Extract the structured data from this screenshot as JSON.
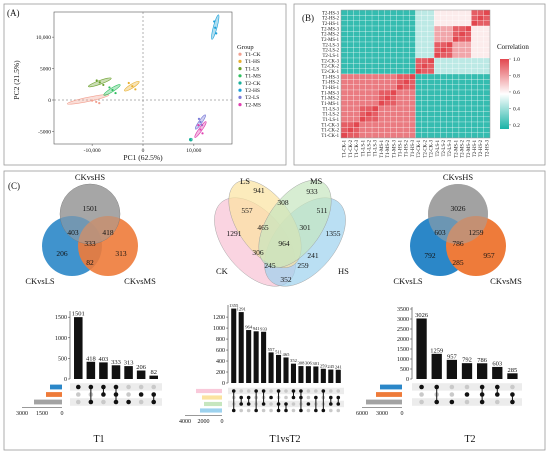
{
  "panel_labels": [
    "(A)",
    "(B)",
    "(C)"
  ],
  "colors": {
    "T1-CK": "#f2a090",
    "T1-HS": "#e8b030",
    "T1-LS": "#6aa02c",
    "T1-MS": "#2fbf5f",
    "T2-CK": "#1ab09a",
    "T2-HS": "#1aa0d8",
    "T2-LS": "#7a7ad8",
    "T2-MS": "#e040b0",
    "CKvsHS": "#a3a3a3",
    "CKvsLS": "#2b87c8",
    "CKvsMS": "#ee7b3a",
    "venn_LS": "#fbe3a0",
    "venn_MS": "#c6e6bf",
    "venn_HS": "#9dd2ee",
    "venn_CK": "#f9c9da"
  },
  "chart_data": [
    {
      "id": "A",
      "type": "scatter",
      "xlabel": "PC1 (62.5%)",
      "ylabel": "PC2 (21.5%)",
      "xticks": [
        "-10,000",
        "0",
        "10,000"
      ],
      "yticks": [
        "10,000",
        "5000",
        "0",
        "-5000"
      ],
      "xlim": [
        -17500,
        17500
      ],
      "ylim": [
        -7000,
        14000
      ],
      "legend_title": "Group",
      "legend_position": "right",
      "series": [
        {
          "name": "T1-CK",
          "points": [
            [
              -10000,
              -100
            ],
            [
              -9200,
              -300
            ],
            [
              -8600,
              -500
            ]
          ],
          "ellipse": {
            "cx": -10800,
            "cy": 100,
            "rx": 4200,
            "ry": 330,
            "angle": 12
          }
        },
        {
          "name": "T1-HS",
          "points": [
            [
              -2800,
              2700
            ],
            [
              -2100,
              2200
            ],
            [
              -1500,
              1700
            ]
          ],
          "ellipse": {
            "cx": -2200,
            "cy": 2200,
            "rx": 1700,
            "ry": 320,
            "angle": 32
          }
        },
        {
          "name": "T1-LS",
          "points": [
            [
              -9100,
              3100
            ],
            [
              -8500,
              2800
            ],
            [
              -7800,
              2400
            ]
          ],
          "ellipse": {
            "cx": -8500,
            "cy": 2800,
            "rx": 2400,
            "ry": 300,
            "angle": 20
          }
        },
        {
          "name": "T1-MS",
          "points": [
            [
              -6600,
              2000
            ],
            [
              -6000,
              1600
            ],
            [
              -5400,
              1100
            ]
          ],
          "ellipse": {
            "cx": -6100,
            "cy": 1600,
            "rx": 1900,
            "ry": 300,
            "angle": 32
          }
        },
        {
          "name": "T2-CK",
          "points": [
            [
              9300,
              -6300
            ],
            [
              9400,
              -6400
            ]
          ],
          "ellipse": {
            "cx": 9400,
            "cy": -6300,
            "rx": 300,
            "ry": 220,
            "angle": 0
          }
        },
        {
          "name": "T2-HS",
          "points": [
            [
              14000,
              12500
            ],
            [
              14200,
              11500
            ],
            [
              14400,
              10600
            ]
          ],
          "ellipse": {
            "cx": 14200,
            "cy": 11600,
            "rx": 2500,
            "ry": 300,
            "angle": 75
          }
        },
        {
          "name": "T2-LS",
          "points": [
            [
              11000,
              -3000
            ],
            [
              11300,
              -3500
            ],
            [
              11600,
              -4000
            ]
          ],
          "ellipse": {
            "cx": 11300,
            "cy": -3500,
            "rx": 1700,
            "ry": 260,
            "angle": 55
          }
        },
        {
          "name": "T2-MS",
          "points": [
            [
              10900,
              -4000
            ],
            [
              11300,
              -4700
            ],
            [
              11700,
              -5300
            ]
          ],
          "ellipse": {
            "cx": 11300,
            "cy": -4700,
            "rx": 1900,
            "ry": 260,
            "angle": 55
          }
        }
      ]
    },
    {
      "id": "B",
      "type": "heatmap",
      "legend_title": "Correlation",
      "colorbar_ticks": [
        "1.0",
        "0.8",
        "0.6",
        "0.4",
        "0.2"
      ],
      "range": [
        0.15,
        1.0
      ],
      "row_labels": [
        "T2-HS-3",
        "T2-HS-2",
        "T2-HS-1",
        "T2-MS-3",
        "T2-MS-2",
        "T2-MS-1",
        "T2-LS-3",
        "T2-LS-2",
        "T2-LS-1",
        "T2-CK-3",
        "T2-CK-2",
        "T2-CK-1",
        "T1-HS-3",
        "T1-HS-2",
        "T1-HS-1",
        "T1-MS-3",
        "T1-MS-2",
        "T1-MS-1",
        "T1-LS-3",
        "T1-LS-2",
        "T1-LS-1",
        "T1-CK-3",
        "T1-CK-2",
        "T1-CK-1"
      ],
      "col_labels": [
        "T1-CK-1",
        "T1-CK-2",
        "T1-CK-3",
        "T1-LS-1",
        "T1-LS-2",
        "T1-LS-3",
        "T1-MS-1",
        "T1-MS-2",
        "T1-MS-3",
        "T1-HS-1",
        "T1-HS-2",
        "T1-HS-3",
        "T2-CK-1",
        "T2-CK-2",
        "T2-CK-3",
        "T2-LS-1",
        "T2-LS-2",
        "T2-LS-3",
        "T2-MS-1",
        "T2-MS-2",
        "T2-MS-3",
        "T2-HS-1",
        "T2-HS-2",
        "T2-HS-3"
      ],
      "matrix_note": "values estimated per block",
      "block_values": {
        "same_sample": 1.0,
        "same_group": 0.95,
        "T1_T1": 0.88,
        "T1_T2": 0.2,
        "T2_CK_vs_T2_other": 0.45,
        "T2_LSMS": 0.78,
        "T2_HS_vs_T2_LSMS": 0.62
      }
    },
    {
      "id": "C-venn-T1",
      "type": "venn",
      "sets": [
        "CKvsHS",
        "CKvsLS",
        "CKvsMS"
      ],
      "regions": {
        "HS": 1501,
        "LS": 206,
        "MS": 313,
        "HS_LS": 403,
        "HS_MS": 418,
        "LS_MS": 82,
        "all": 333
      }
    },
    {
      "id": "C-venn-T1vsT2",
      "type": "venn",
      "sets": [
        "LS",
        "MS",
        "CK",
        "HS"
      ],
      "regions": [
        941,
        933,
        308,
        557,
        511,
        1291,
        1355,
        465,
        301,
        964,
        306,
        241,
        245,
        259,
        352
      ]
    },
    {
      "id": "C-venn-T2",
      "type": "venn",
      "sets": [
        "CKvsHS",
        "CKvsLS",
        "CKvsMS"
      ],
      "regions": {
        "HS": 3026,
        "LS": 792,
        "MS": 957,
        "HS_LS": 603,
        "HS_MS": 1259,
        "LS_MS": 285,
        "all": 786
      }
    },
    {
      "id": "C-upset-T1",
      "type": "bar",
      "xlabel": "T1",
      "values": [
        1501,
        418,
        403,
        333,
        313,
        206,
        82
      ],
      "yticks": [
        0,
        500,
        1000,
        1500
      ],
      "ylim": [
        0,
        1650
      ],
      "set_size_ticks": [
        "3000",
        "1500",
        "0"
      ],
      "matrix": [
        [
          1,
          0,
          0
        ],
        [
          1,
          0,
          1
        ],
        [
          1,
          1,
          0
        ],
        [
          1,
          1,
          1
        ],
        [
          0,
          0,
          1
        ],
        [
          0,
          1,
          0
        ],
        [
          0,
          1,
          1
        ]
      ]
    },
    {
      "id": "C-upset-T1vsT2",
      "type": "bar",
      "xlabel": "T1vsT2",
      "values": [
        1355,
        1291,
        964,
        941,
        933,
        557,
        511,
        465,
        352,
        308,
        306,
        301,
        259,
        245,
        241
      ],
      "labels": [
        "1355",
        "1291",
        "964",
        "941",
        "933",
        "557",
        "511",
        "465",
        "352",
        "308",
        "306",
        "301",
        "259",
        "245",
        "241"
      ],
      "yticks": [
        0,
        200,
        400,
        600,
        800,
        1000,
        1200
      ],
      "ylim": [
        0,
        1420
      ],
      "set_size_ticks": [
        "4000",
        "2000",
        "0"
      ],
      "set_colors": [
        "#f9c9da",
        "#fbe3a0",
        "#c6e6bf",
        "#9dd2ee"
      ]
    },
    {
      "id": "C-upset-T2",
      "type": "bar",
      "xlabel": "T2",
      "values": [
        3026,
        1259,
        957,
        792,
        786,
        603,
        285
      ],
      "yticks": [
        0,
        500,
        1000,
        1500,
        2000,
        2500,
        3000,
        3500
      ],
      "ylim": [
        0,
        3600
      ],
      "set_size_ticks": [
        "6000",
        "3000",
        "0"
      ],
      "matrix": [
        [
          1,
          0,
          0
        ],
        [
          1,
          0,
          1
        ],
        [
          0,
          0,
          1
        ],
        [
          0,
          1,
          0
        ],
        [
          1,
          1,
          1
        ],
        [
          1,
          1,
          0
        ],
        [
          0,
          1,
          1
        ]
      ]
    }
  ]
}
